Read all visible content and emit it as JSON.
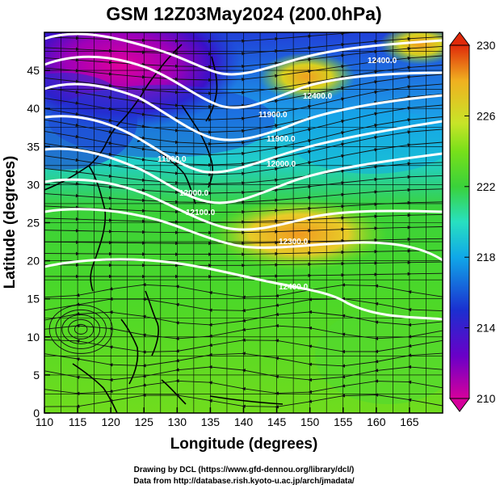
{
  "title": "GSM 12Z03May2024 (200.0hPa)",
  "x_axis": {
    "label": "Longitude (degrees)",
    "range": [
      110,
      170
    ],
    "ticks": [
      "110",
      "115",
      "120",
      "125",
      "130",
      "135",
      "140",
      "145",
      "150",
      "155",
      "160",
      "165"
    ]
  },
  "y_axis": {
    "label": "Latitude  (degrees)",
    "range": [
      0,
      50
    ],
    "ticks": [
      "0",
      "5",
      "10",
      "15",
      "20",
      "25",
      "30",
      "35",
      "40",
      "45"
    ]
  },
  "colorbar": {
    "range": [
      210,
      230
    ],
    "ticks": [
      "230",
      "226",
      "222",
      "218",
      "214",
      "210"
    ],
    "colors": [
      "#d6009c",
      "#6a00c8",
      "#1b2fd0",
      "#10a8e8",
      "#28e0c0",
      "#3ad23a",
      "#78e01a",
      "#c8e428",
      "#f0b020",
      "#e02a0a"
    ]
  },
  "contour_labels": [
    "11900.0",
    "11900.0",
    "11900.0",
    "12000.0",
    "12000.0",
    "12100.0",
    "12300.0",
    "12400.0",
    "12400.0",
    "12400.0"
  ],
  "credits": {
    "line1": "Drawing by DCL (https://www.gfd-dennou.org/library/dcl/)",
    "line2": "Data from http://database.rish.kyoto-u.ac.jp/arch/jmadata/"
  },
  "colors": {
    "contour": "#ffffff",
    "streamline": "#111111",
    "grid": "#000000"
  }
}
